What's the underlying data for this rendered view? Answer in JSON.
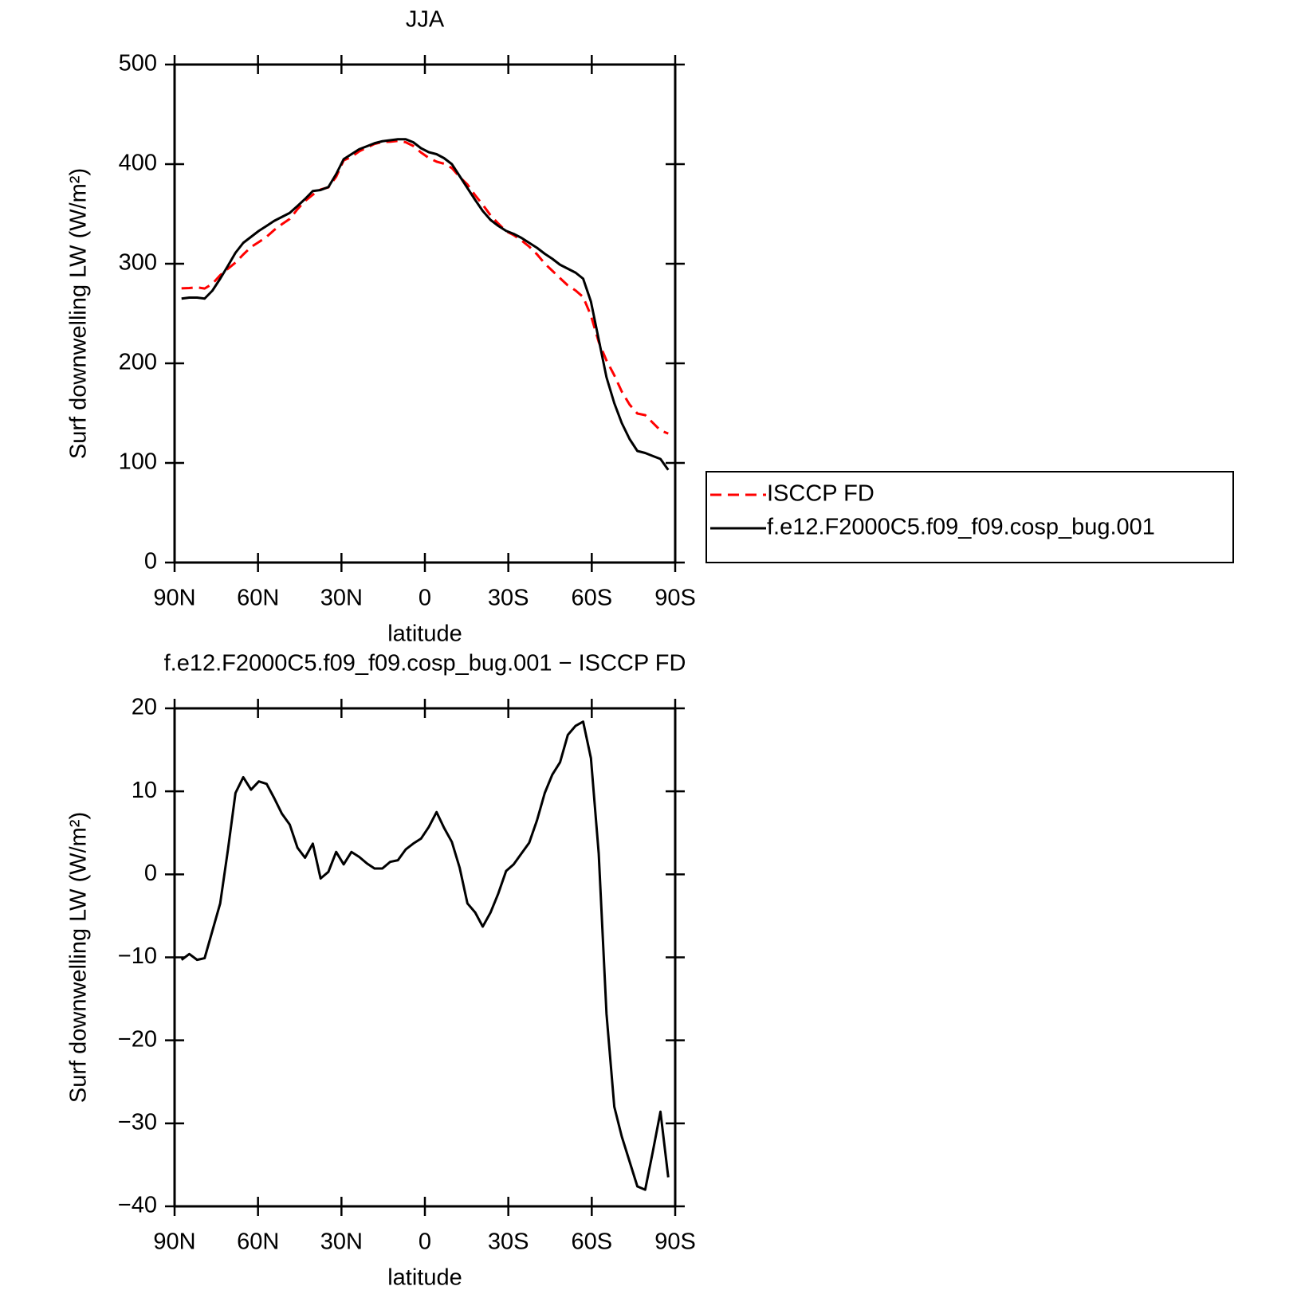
{
  "chart_data": [
    {
      "type": "line",
      "title": "JJA",
      "xlabel": "latitude",
      "ylabel": "Surf downwelling LW (W/m²)",
      "x": [
        87.5,
        84.7,
        81.9,
        79.2,
        76.4,
        73.6,
        70.8,
        68.1,
        65.3,
        62.5,
        59.7,
        56.9,
        54.2,
        51.4,
        48.6,
        45.8,
        43.1,
        40.3,
        37.5,
        34.7,
        31.9,
        29.2,
        26.4,
        23.6,
        20.8,
        18.1,
        15.3,
        12.5,
        9.7,
        6.9,
        4.2,
        1.4,
        -1.4,
        -4.2,
        -6.9,
        -9.7,
        -12.5,
        -15.3,
        -18.1,
        -20.8,
        -23.6,
        -26.4,
        -29.2,
        -31.9,
        -34.7,
        -37.5,
        -40.3,
        -43.1,
        -45.8,
        -48.6,
        -51.4,
        -54.2,
        -56.9,
        -59.7,
        -62.5,
        -65.3,
        -68.1,
        -70.8,
        -73.6,
        -76.4,
        -79.2,
        -81.9,
        -84.7,
        -87.5
      ],
      "series": [
        {
          "name": "ISCCP FD",
          "color": "#ff0000",
          "line_style": "dashed",
          "values": [
            275.3,
            275.6,
            276.3,
            275.1,
            279.8,
            288.5,
            295,
            301.2,
            309.3,
            316.8,
            321.8,
            327.1,
            333.8,
            339.7,
            345,
            354.8,
            363,
            369.3,
            374.5,
            376.7,
            387.3,
            403.8,
            407.3,
            412.9,
            416.7,
            420.3,
            422.3,
            422.5,
            423.3,
            422,
            418.3,
            411.7,
            406.3,
            402.5,
            400.4,
            396.1,
            387.2,
            379.5,
            368.6,
            359.3,
            348.6,
            340.3,
            332.6,
            328.8,
            323.5,
            317.2,
            309.5,
            300.2,
            293,
            285.5,
            278.2,
            273.1,
            266.6,
            248,
            221.5,
            202.8,
            188,
            171.6,
            158.6,
            149.6,
            148,
            140.5,
            132.6,
            129.5
          ]
        },
        {
          "name": "f.e12.F2000C5.f09_f09.cosp_bug.001",
          "color": "#000000",
          "line_style": "solid",
          "values": [
            265,
            266,
            266,
            265,
            273,
            285,
            298,
            311,
            321,
            327,
            333,
            338,
            343,
            347,
            351,
            358,
            365,
            373,
            374,
            377,
            390,
            405,
            410,
            415,
            418,
            421,
            423,
            424,
            425,
            425,
            422,
            416,
            412,
            410,
            406,
            400,
            388,
            376,
            364,
            353,
            344,
            338,
            333,
            330,
            326,
            321,
            316,
            310,
            305,
            299,
            295,
            291,
            285,
            262,
            224,
            186,
            160,
            140,
            124,
            112,
            110,
            107,
            104,
            93
          ]
        }
      ],
      "xlim": [
        90,
        -90
      ],
      "xticks": [
        {
          "value": 90,
          "label": "90N"
        },
        {
          "value": 60,
          "label": "60N"
        },
        {
          "value": 30,
          "label": "30N"
        },
        0,
        {
          "value": -30,
          "label": "30S"
        },
        {
          "value": -60,
          "label": "60S"
        },
        {
          "value": -90,
          "label": "90S"
        }
      ],
      "ylim": [
        0,
        500
      ],
      "yticks": [
        0,
        100,
        200,
        300,
        400,
        500
      ],
      "legend": "right"
    },
    {
      "type": "line",
      "title": "f.e12.F2000C5.f09_f09.cosp_bug.001 − ISCCP FD",
      "xlabel": "latitude",
      "ylabel": "Surf downwelling LW (W/m²)",
      "x": [
        87.5,
        84.7,
        81.9,
        79.2,
        76.4,
        73.6,
        70.8,
        68.1,
        65.3,
        62.5,
        59.7,
        56.9,
        54.2,
        51.4,
        48.6,
        45.8,
        43.1,
        40.3,
        37.5,
        34.7,
        31.9,
        29.2,
        26.4,
        23.6,
        20.8,
        18.1,
        15.3,
        12.5,
        9.7,
        6.9,
        4.2,
        1.4,
        -1.4,
        -4.2,
        -6.9,
        -9.7,
        -12.5,
        -15.3,
        -18.1,
        -20.8,
        -23.6,
        -26.4,
        -29.2,
        -31.9,
        -34.7,
        -37.5,
        -40.3,
        -43.1,
        -45.8,
        -48.6,
        -51.4,
        -54.2,
        -56.9,
        -59.7,
        -62.5,
        -65.3,
        -68.1,
        -70.8,
        -73.6,
        -76.4,
        -79.2,
        -81.9,
        -84.7,
        -87.5
      ],
      "values": [
        -10.3,
        -9.6,
        -10.3,
        -10.1,
        -6.8,
        -3.5,
        3.0,
        9.8,
        11.7,
        10.2,
        11.2,
        10.9,
        9.2,
        7.3,
        6.0,
        3.2,
        2.0,
        3.7,
        -0.5,
        0.3,
        2.7,
        1.2,
        2.7,
        2.1,
        1.3,
        0.7,
        0.7,
        1.5,
        1.7,
        3.0,
        3.7,
        4.3,
        5.7,
        7.5,
        5.6,
        3.9,
        0.8,
        -3.5,
        -4.6,
        -6.3,
        -4.6,
        -2.3,
        0.4,
        1.2,
        2.5,
        3.8,
        6.5,
        9.8,
        12.0,
        13.5,
        16.8,
        17.9,
        18.4,
        14.0,
        2.5,
        -16.8,
        -28.0,
        -31.6,
        -34.6,
        -37.6,
        -38.0,
        -33.5,
        -28.6,
        -36.5
      ],
      "color": "#000000",
      "xlim": [
        90,
        -90
      ],
      "xticks": [
        {
          "value": 90,
          "label": "90N"
        },
        {
          "value": 60,
          "label": "60N"
        },
        {
          "value": 30,
          "label": "30N"
        },
        0,
        {
          "value": -30,
          "label": "30S"
        },
        {
          "value": -60,
          "label": "60S"
        },
        {
          "value": -90,
          "label": "90S"
        }
      ],
      "ylim": [
        -40,
        20
      ],
      "yticks": [
        {
          "value": -40,
          "label": "−40"
        },
        {
          "value": -30,
          "label": "−30"
        },
        {
          "value": -20,
          "label": "−20"
        },
        {
          "value": -10,
          "label": "−10"
        },
        0,
        10,
        20
      ]
    }
  ]
}
